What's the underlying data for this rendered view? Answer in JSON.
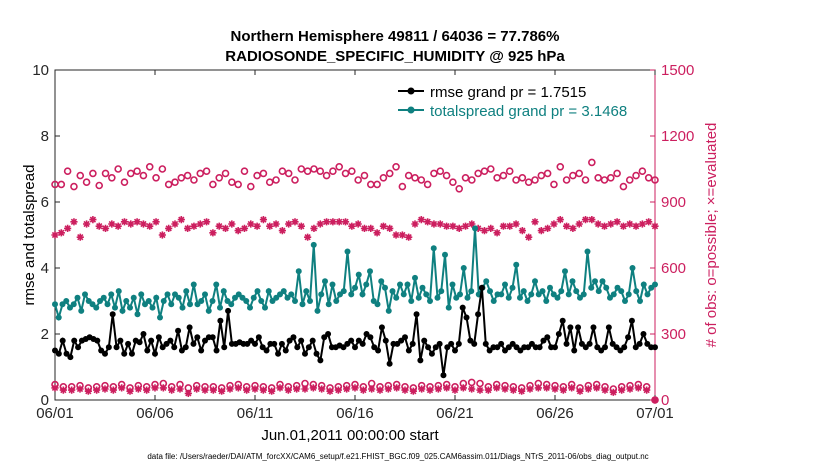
{
  "chart_data": {
    "type": "line",
    "title_line1": "Northern Hemisphere 49811 / 64036 = 77.786%",
    "title_line2": "RADIOSONDE_SPECIFIC_HUMIDITY @ 925 hPa",
    "xlabel": "Jun.01,2011 00:00:00 start",
    "ylabel_left": "rmse and totalspread",
    "ylabel_right": "# of obs: o=possible; ×=evaluated",
    "xlim": [
      0,
      30
    ],
    "ylim_left": [
      0,
      10
    ],
    "ylim_right": [
      0,
      1500
    ],
    "xtick_values": [
      0,
      5,
      10,
      15,
      20,
      25,
      30
    ],
    "xtick_labels": [
      "06/01",
      "06/06",
      "06/11",
      "06/16",
      "06/21",
      "06/26",
      "07/01"
    ],
    "ytick_left_values": [
      0,
      2,
      4,
      6,
      8,
      10
    ],
    "ytick_left_labels": [
      "0",
      "2",
      "4",
      "6",
      "8",
      "10"
    ],
    "ytick_right_values": [
      0,
      300,
      600,
      900,
      1200,
      1500
    ],
    "ytick_right_labels": [
      "0",
      "300",
      "600",
      "900",
      "1200",
      "1500"
    ],
    "footer": "data file: /Users/raeder/DAI/ATM_forcXX/CAM6_setup/f.e21.FHIST_BGC.f09_025.CAM6assim.011/Diags_NTrS_2011-06/obs_diag_output.nc",
    "colors": {
      "rmse": "#000000",
      "spread": "#0f8080",
      "obs": "#cc1f5f",
      "axis": "#262626"
    },
    "series": [
      {
        "name": "rmse grand pr = 1.7515",
        "axis": "left",
        "values": [
          1.5,
          1.4,
          1.8,
          1.4,
          1.3,
          1.8,
          1.6,
          1.8,
          1.85,
          1.9,
          1.85,
          1.8,
          1.5,
          1.4,
          1.6,
          2.6,
          1.6,
          1.8,
          1.4,
          1.7,
          1.4,
          1.8,
          1.75,
          2.0,
          1.5,
          1.8,
          1.4,
          1.9,
          1.6,
          1.7,
          1.8,
          1.6,
          2.1,
          1.5,
          1.6,
          2.2,
          1.7,
          1.9,
          1.5,
          1.8,
          1.9,
          1.9,
          1.5,
          2.4,
          1.6,
          2.7,
          1.7,
          1.7,
          1.75,
          1.7,
          1.7,
          1.8,
          1.7,
          1.9,
          1.6,
          1.5,
          1.7,
          1.7,
          1.4,
          1.7,
          1.5,
          1.8,
          1.9,
          1.6,
          1.8,
          1.4,
          1.6,
          1.8,
          1.4,
          1.2,
          1.9,
          2.0,
          1.6,
          1.6,
          1.65,
          1.6,
          1.7,
          1.8,
          1.6,
          1.8,
          1.7,
          2.0,
          1.9,
          1.6,
          1.5,
          2.2,
          1.8,
          1.1,
          1.7,
          1.7,
          1.8,
          1.9,
          1.5,
          1.7,
          2.6,
          1.2,
          1.8,
          1.6,
          1.4,
          1.6,
          1.7,
          0.75,
          1.6,
          1.7,
          1.5,
          1.7,
          2.8,
          2.5,
          1.8,
          1.7,
          2.6,
          3.4,
          1.7,
          1.5,
          1.6,
          1.6,
          1.7,
          1.5,
          1.6,
          1.7,
          1.6,
          1.5,
          1.6,
          1.6,
          1.7,
          1.6,
          1.6,
          1.8,
          1.9,
          1.6,
          1.6,
          2.0,
          2.4,
          1.7,
          2.2,
          1.5,
          2.2,
          1.7,
          1.6,
          1.7,
          2.2,
          1.6,
          1.5,
          1.6,
          2.2,
          1.7,
          1.6,
          1.5,
          1.6,
          1.9,
          2.4,
          1.6,
          1.7,
          2.0,
          1.7,
          1.6,
          1.6
        ]
      },
      {
        "name": "totalspread grand pr = 3.1468",
        "axis": "left",
        "values": [
          2.9,
          2.5,
          2.9,
          3.0,
          2.8,
          2.9,
          3.1,
          2.7,
          3.2,
          3.0,
          2.9,
          2.8,
          3.0,
          3.1,
          2.9,
          3.2,
          2.8,
          3.3,
          2.7,
          3.0,
          2.8,
          3.1,
          2.6,
          3.2,
          2.9,
          3.0,
          2.8,
          3.1,
          2.5,
          3.0,
          3.2,
          2.9,
          3.2,
          3.1,
          2.8,
          3.3,
          2.9,
          3.5,
          2.9,
          3.0,
          3.2,
          2.7,
          3.0,
          3.5,
          2.8,
          3.3,
          3.0,
          2.9,
          3.1,
          3.2,
          3.1,
          3.0,
          2.8,
          3.1,
          3.3,
          3.0,
          2.8,
          3.3,
          3.0,
          3.1,
          3.2,
          3.3,
          3.1,
          3.2,
          3.0,
          3.9,
          2.9,
          3.3,
          3.0,
          4.7,
          2.7,
          3.2,
          3.6,
          2.9,
          3.5,
          3.0,
          3.2,
          3.3,
          4.5,
          3.2,
          3.4,
          3.8,
          3.2,
          3.5,
          3.9,
          3.0,
          2.9,
          3.6,
          3.4,
          2.7,
          3.3,
          3.1,
          3.5,
          3.2,
          3.5,
          3.0,
          3.7,
          3.1,
          3.4,
          3.2,
          3.0,
          4.6,
          3.1,
          3.3,
          4.4,
          2.8,
          3.5,
          3.1,
          3.2,
          4.0,
          3.1,
          3.3,
          5.2,
          3.2,
          3.4,
          3.6,
          3.3,
          3.0,
          3.2,
          3.2,
          3.5,
          3.1,
          3.4,
          4.1,
          3.1,
          3.3,
          3.0,
          3.2,
          3.6,
          3.2,
          3.3,
          3.0,
          3.4,
          3.2,
          3.1,
          3.3,
          3.9,
          3.2,
          3.6,
          3.3,
          3.1,
          3.2,
          4.5,
          3.4,
          3.6,
          3.3,
          3.6,
          3.4,
          3.1,
          3.2,
          3.4,
          3.3,
          3.0,
          3.2,
          4.0,
          3.3,
          3.0,
          3.5,
          3.2,
          3.4,
          3.5
        ]
      }
    ],
    "obs_possible": {
      "name": "o=possible",
      "axis": "right",
      "values": [
        980,
        980,
        1040,
        970,
        1020,
        990,
        1030,
        975,
        1030,
        1010,
        1050,
        990,
        1030,
        1040,
        1020,
        1060,
        1010,
        1050,
        980,
        990,
        1010,
        1020,
        1000,
        1030,
        1040,
        980,
        1010,
        1030,
        990,
        980,
        1040,
        970,
        1020,
        1030,
        990,
        1000,
        1040,
        1030,
        1000,
        1050,
        1040,
        1050,
        1040,
        1020,
        1040,
        1060,
        1030,
        1040,
        1000,
        1020,
        980,
        980,
        1010,
        1030,
        1060,
        970,
        1020,
        1010,
        1000,
        980,
        1030,
        1040,
        1020,
        990,
        960,
        1010,
        1000,
        1030,
        1040,
        1050,
        1010,
        1020,
        1040,
        1000,
        1010,
        990,
        1000,
        1020,
        1030,
        980,
        1060,
        1000,
        1020,
        1030,
        1000,
        1080,
        1010,
        1000,
        1010,
        1030,
        970,
        1000,
        1020,
        1040,
        1010,
        1000
      ]
    },
    "obs_evaluated": {
      "name": "×=evaluated",
      "axis": "right",
      "values": [
        750,
        760,
        780,
        810,
        740,
        800,
        820,
        790,
        780,
        800,
        790,
        810,
        800,
        810,
        800,
        790,
        810,
        750,
        780,
        800,
        820,
        780,
        790,
        800,
        810,
        760,
        790,
        780,
        800,
        770,
        780,
        800,
        790,
        820,
        790,
        800,
        770,
        800,
        810,
        790,
        740,
        780,
        800,
        810,
        810,
        810,
        810,
        790,
        800,
        780,
        780,
        760,
        790,
        780,
        750,
        750,
        740,
        800,
        820,
        810,
        800,
        800,
        790,
        790,
        780,
        790,
        800,
        780,
        770,
        780,
        760,
        790,
        790,
        800,
        770,
        740,
        810,
        770,
        780,
        800,
        820,
        790,
        780,
        800,
        820,
        820,
        800,
        790,
        800,
        810,
        790,
        800,
        790,
        800,
        810,
        790
      ]
    },
    "obs_bottom_possible": {
      "axis": "right",
      "values": [
        70,
        60,
        60,
        65,
        55,
        60,
        65,
        60,
        70,
        55,
        65,
        60,
        70,
        75,
        60,
        70,
        55,
        65,
        60,
        60,
        55,
        65,
        70,
        60,
        65,
        60,
        55,
        70,
        60,
        65,
        75,
        70,
        65,
        55,
        60,
        65,
        70,
        60,
        75,
        60,
        65,
        70,
        60,
        55,
        65,
        60,
        65,
        70,
        60,
        75,
        80,
        75,
        60,
        70,
        65,
        60,
        55,
        65,
        75,
        70,
        65,
        60,
        70,
        55,
        65,
        70,
        60,
        50,
        60,
        65,
        70,
        60,
        0
      ]
    },
    "obs_bottom_evaluated": {
      "axis": "right",
      "values": [
        55,
        45,
        45,
        50,
        40,
        45,
        50,
        45,
        55,
        40,
        50,
        45,
        55,
        55,
        45,
        50,
        30,
        50,
        45,
        45,
        40,
        50,
        55,
        45,
        50,
        45,
        40,
        55,
        45,
        50,
        50,
        55,
        50,
        40,
        45,
        50,
        55,
        45,
        50,
        45,
        50,
        55,
        45,
        40,
        50,
        45,
        50,
        55,
        45,
        55,
        50,
        45,
        45,
        55,
        50,
        45,
        40,
        50,
        55,
        55,
        50,
        45,
        55,
        40,
        50,
        55,
        45,
        35,
        45,
        50,
        55,
        45,
        0
      ]
    }
  }
}
